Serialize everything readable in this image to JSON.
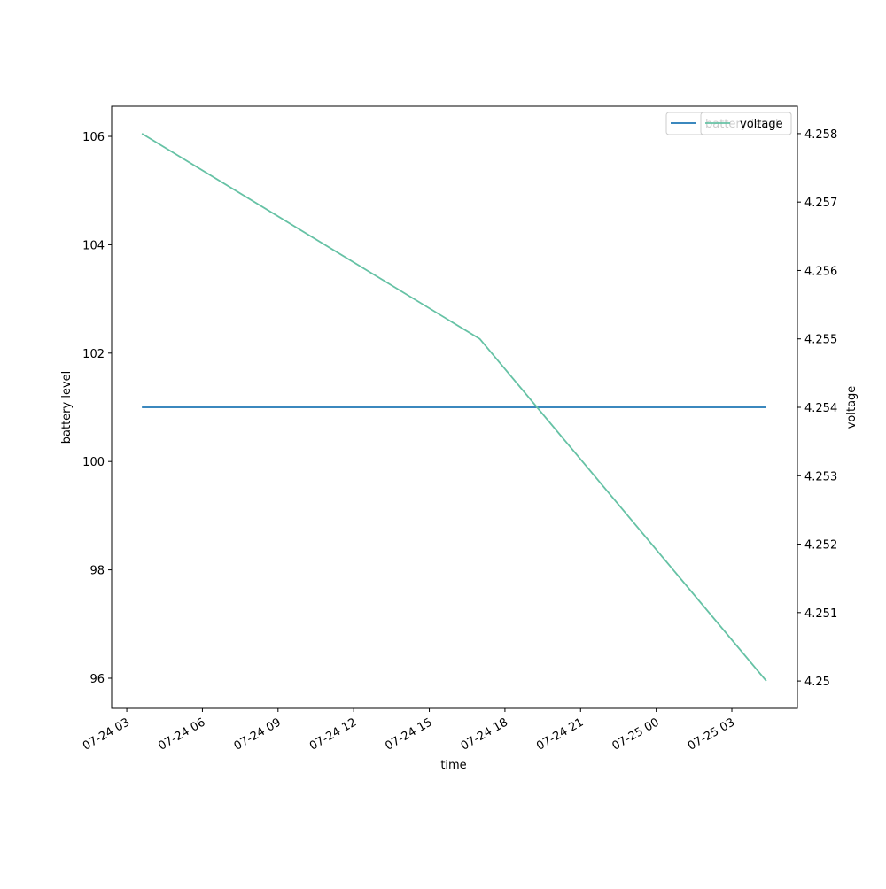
{
  "chart_data": {
    "type": "line",
    "x_label": "time",
    "y_label": "battery level",
    "y2_label": "voltage",
    "series": [
      {
        "name": "battery level",
        "color": "#1f77b4",
        "x": [
          "07-24 03:36",
          "07-25 04:22"
        ],
        "values": [
          101,
          101
        ]
      },
      {
        "name": "voltage",
        "color": "#66c2a5",
        "axis": "y2",
        "x": [
          "07-24 03:36",
          "07-24 17:00",
          "07-25 04:22"
        ],
        "values": [
          4.258,
          4.255,
          4.25
        ]
      }
    ],
    "xlim": [
      "07-24 02:24",
      "07-25 05:36"
    ],
    "xticks": [
      "07-24 03",
      "07-24 06",
      "07-24 09",
      "07-24 12",
      "07-24 15",
      "07-24 18",
      "07-24 21",
      "07-25 00",
      "07-25 03"
    ],
    "ylim": [
      95.444,
      106.556
    ],
    "yticks": [
      96,
      98,
      100,
      102,
      104,
      106
    ],
    "y2lim": [
      4.2496,
      4.2584
    ],
    "y2ticks": [
      4.25,
      4.251,
      4.252,
      4.253,
      4.254,
      4.255,
      4.256,
      4.257,
      4.258
    ],
    "legend": "upper right"
  }
}
